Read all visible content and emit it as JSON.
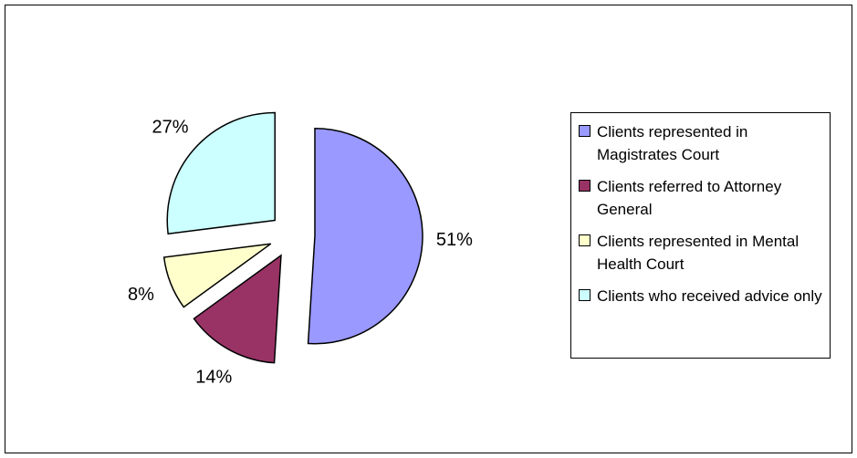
{
  "chart_data": {
    "type": "pie",
    "categories": [
      "Clients represented in Magistrates Court",
      "Clients referred to Attorney General",
      "Clients represented in Mental Health Court",
      "Clients who received advice only"
    ],
    "values": [
      51,
      14,
      8,
      27
    ],
    "value_labels": [
      "51%",
      "14%",
      "8%",
      "27%"
    ],
    "colors": [
      "#9999ff",
      "#993366",
      "#ffffcc",
      "#ccffff"
    ],
    "legend": "right"
  }
}
